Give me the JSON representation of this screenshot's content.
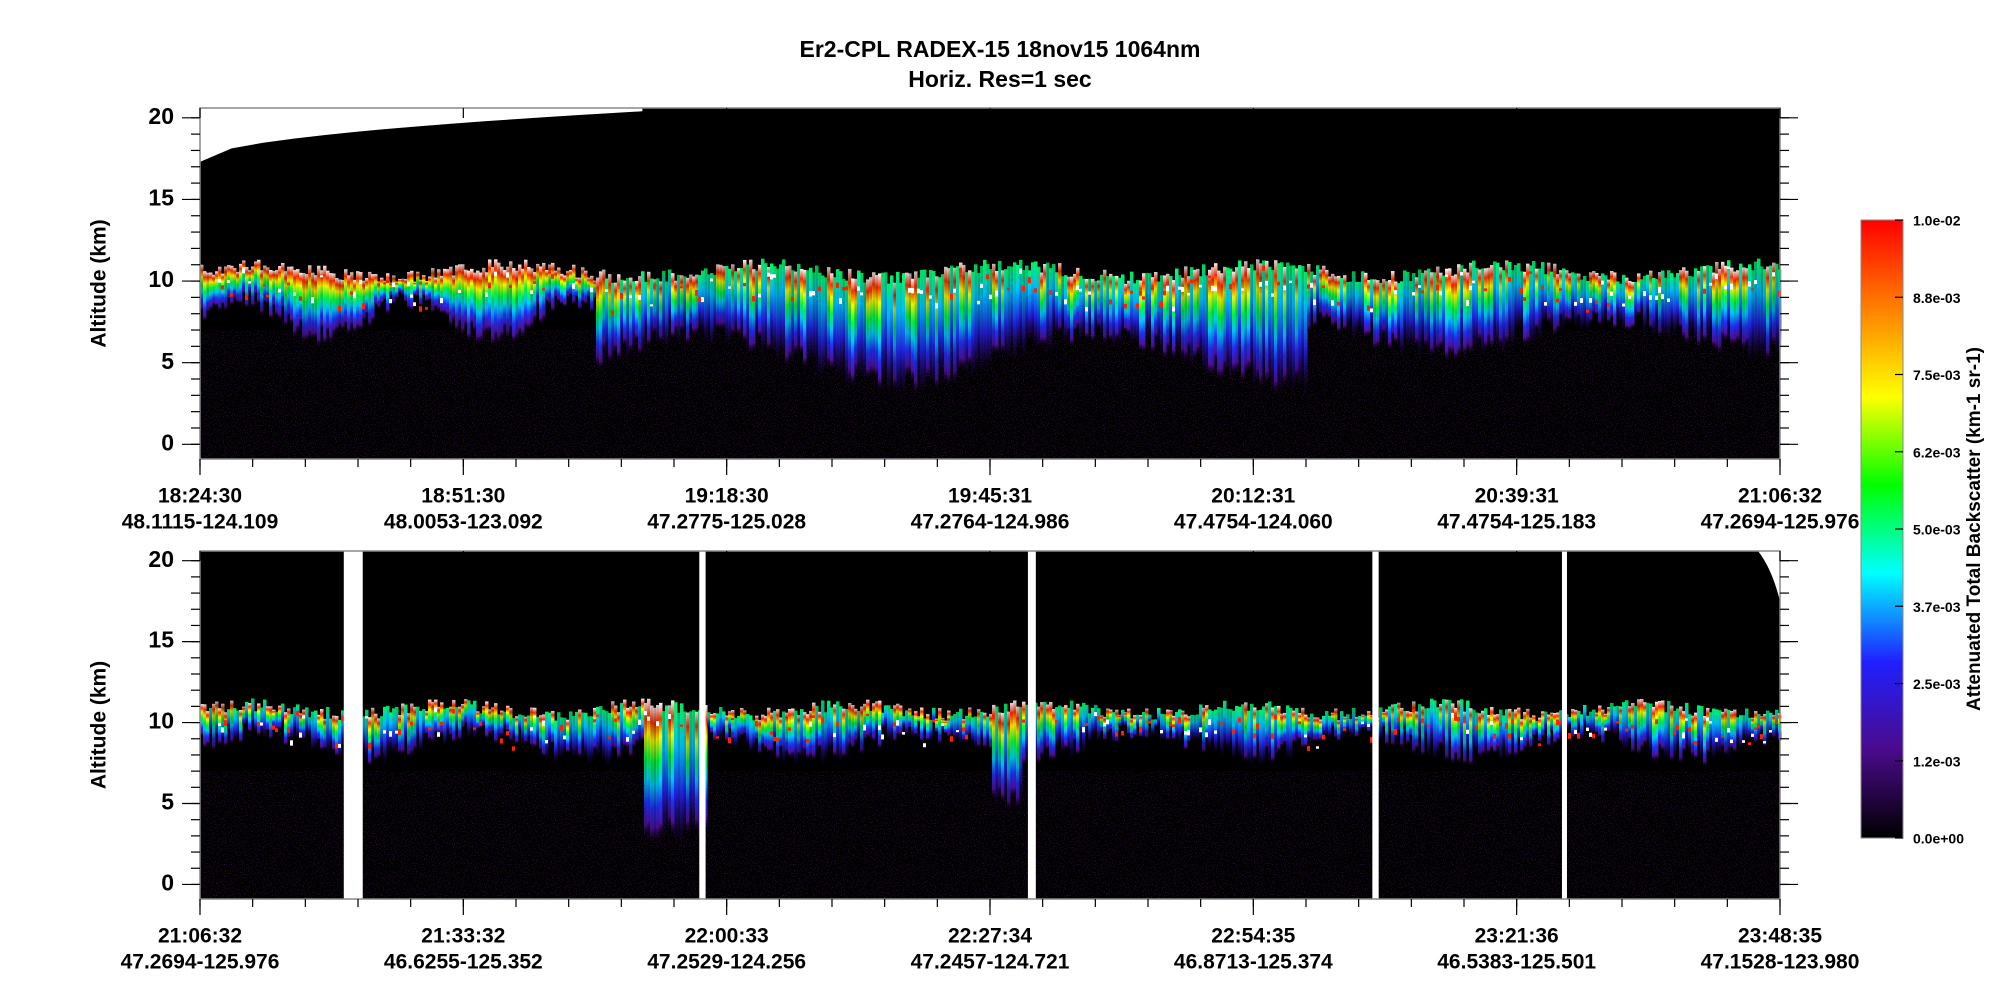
{
  "chart_data": [
    {
      "type": "curtain",
      "title": "Er2-CPL  RADEX-15  18nov15  1064nm",
      "subtitle": "Horiz. Res=1 sec",
      "y_label": "Altitude (km)",
      "ylim": [
        -0.9,
        20.6
      ],
      "yticks": [
        0,
        5,
        10,
        15,
        20
      ],
      "xticks": [
        {
          "time": "18:24:30",
          "location": "48.1115-124.109"
        },
        {
          "time": "18:51:30",
          "location": "48.0053-123.092"
        },
        {
          "time": "19:18:30",
          "location": "47.2775-125.028"
        },
        {
          "time": "19:45:31",
          "location": "47.2764-124.986"
        },
        {
          "time": "20:12:31",
          "location": "47.4754-124.060"
        },
        {
          "time": "20:39:31",
          "location": "47.4754-125.183"
        },
        {
          "time": "21:06:32",
          "location": "47.2694-125.976"
        }
      ],
      "colorbar": {
        "label": "Attenuated Total Backscatter (km-1 sr-1)",
        "lim": [
          0,
          0.01
        ],
        "colors": [
          "#000000",
          "#4b0a8c",
          "#2020ff",
          "#00ffff",
          "#00ff00",
          "#ffff00",
          "#ff8000",
          "#ff0000"
        ],
        "ticks": [
          {
            "value": 0,
            "label": "0.0e+00"
          },
          {
            "value": 0.00125,
            "label": "1.2e-03"
          },
          {
            "value": 0.0025,
            "label": "2.5e-03"
          },
          {
            "value": 0.00375,
            "label": "3.7e-03"
          },
          {
            "value": 0.005,
            "label": "5.0e-03"
          },
          {
            "value": 0.00625,
            "label": "6.2e-03"
          },
          {
            "value": 0.0075,
            "label": "7.5e-03"
          },
          {
            "value": 0.00875,
            "label": "8.8e-03"
          },
          {
            "value": 0.01,
            "label": "1.0e-02"
          }
        ]
      }
    },
    {
      "type": "curtain",
      "y_label": "Altitude (km)",
      "ylim": [
        -0.9,
        20.6
      ],
      "yticks": [
        0,
        5,
        10,
        15,
        20
      ],
      "xticks": [
        {
          "time": "21:06:32",
          "location": "47.2694-125.976"
        },
        {
          "time": "21:33:32",
          "location": "46.6255-125.352"
        },
        {
          "time": "22:00:33",
          "location": "47.2529-124.256"
        },
        {
          "time": "22:27:34",
          "location": "47.2457-124.721"
        },
        {
          "time": "22:54:35",
          "location": "46.8713-125.374"
        },
        {
          "time": "23:21:36",
          "location": "46.5383-125.501"
        },
        {
          "time": "23:48:35",
          "location": "47.1528-123.980"
        }
      ]
    }
  ]
}
